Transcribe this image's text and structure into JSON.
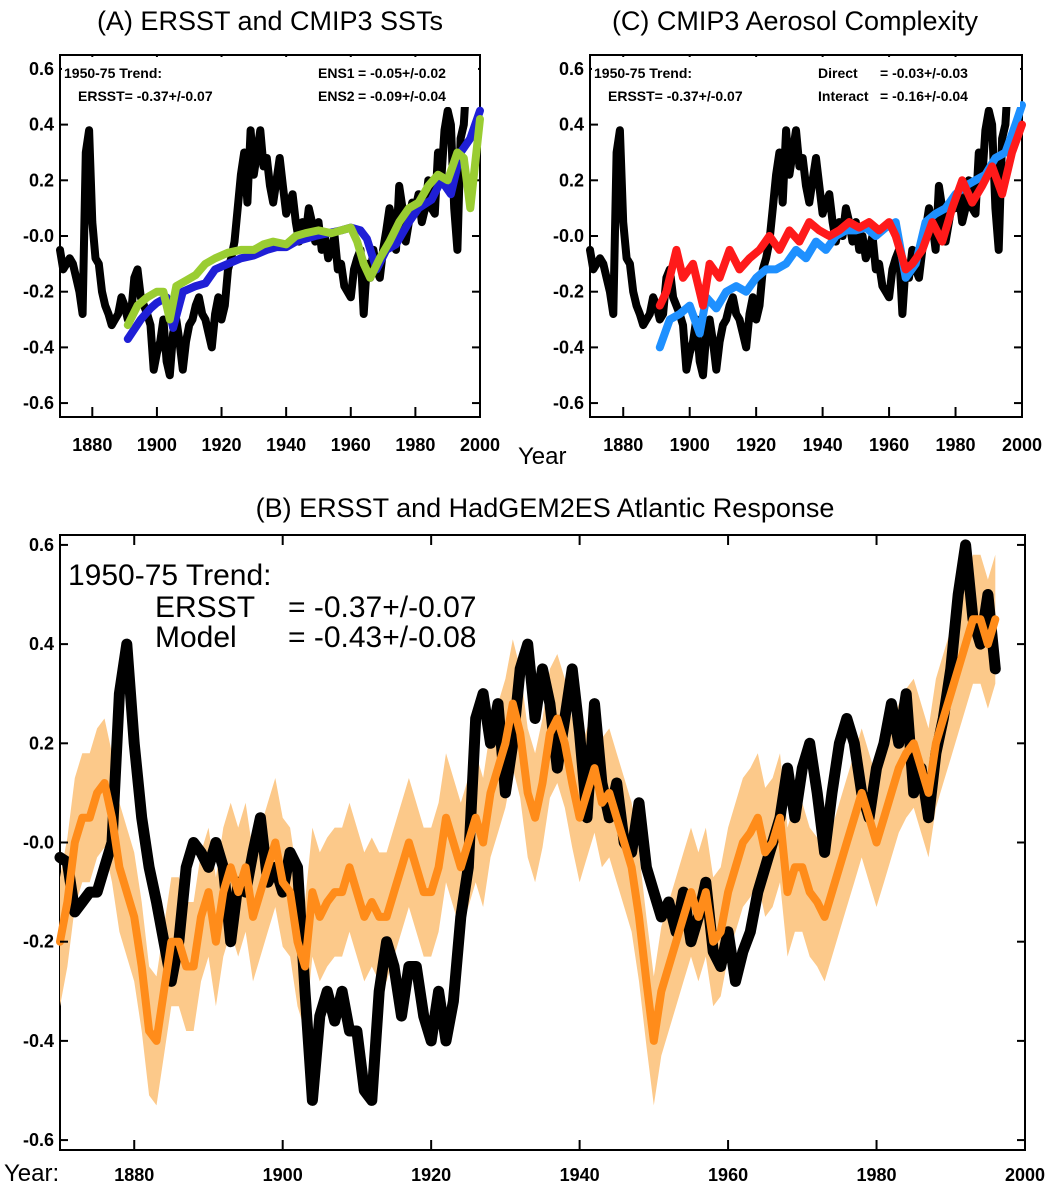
{
  "x_label": "Year",
  "x_label_b": "Year:",
  "chart_data": [
    {
      "id": "A",
      "type": "line",
      "title": "(A) ERSST and CMIP3 SSTs",
      "xlim": [
        1870,
        2000
      ],
      "ylim": [
        -0.65,
        0.65
      ],
      "xticks": [
        1880,
        1900,
        1920,
        1940,
        1960,
        1980,
        2000
      ],
      "yticks": [
        -0.6,
        -0.4,
        -0.2,
        0.0,
        0.2,
        0.4,
        0.6
      ],
      "ytick_labels": [
        "-0.6",
        "-0.4",
        "-0.2",
        "-0.0",
        "0.2",
        "0.4",
        "0.6"
      ],
      "annotations": {
        "trend_title": "1950-75 Trend:",
        "ersst_text": "ERSST= -0.37+/-0.07",
        "legend": [
          {
            "name": "ENS1",
            "value": "= -0.05+/-0.02",
            "color": "#1f1fd6"
          },
          {
            "name": "ENS2",
            "value": "= -0.09+/-0.04",
            "color": "#9acd32"
          }
        ]
      },
      "series": [
        {
          "name": "ERSST",
          "color": "#000000",
          "x0": 1870,
          "values": [
            -0.05,
            -0.12,
            -0.1,
            -0.08,
            -0.1,
            -0.15,
            -0.2,
            -0.28,
            0.3,
            0.38,
            0.05,
            -0.08,
            -0.1,
            -0.2,
            -0.25,
            -0.28,
            -0.32,
            -0.3,
            -0.28,
            -0.22,
            -0.25,
            -0.3,
            -0.28,
            -0.15,
            -0.12,
            -0.22,
            -0.25,
            -0.28,
            -0.32,
            -0.48,
            -0.42,
            -0.38,
            -0.3,
            -0.45,
            -0.5,
            -0.35,
            -0.3,
            -0.38,
            -0.48,
            -0.38,
            -0.32,
            -0.3,
            -0.25,
            -0.22,
            -0.28,
            -0.3,
            -0.35,
            -0.4,
            -0.28,
            -0.22,
            -0.3,
            -0.25,
            -0.12,
            -0.08,
            -0.02,
            0.1,
            0.22,
            0.3,
            0.12,
            0.38,
            0.22,
            0.3,
            0.38,
            0.25,
            0.28,
            0.18,
            0.12,
            0.2,
            0.28,
            0.18,
            0.08,
            0.12,
            0.15,
            0.05,
            -0.02,
            0.05,
            0.0,
            0.1,
            0.05,
            -0.02,
            0.05,
            -0.05,
            0.0,
            -0.08,
            -0.05,
            0.0,
            -0.12,
            -0.1,
            -0.18,
            -0.2,
            -0.22,
            -0.12,
            -0.08,
            -0.05,
            -0.28,
            -0.1,
            -0.15,
            -0.05,
            -0.12,
            -0.15,
            -0.05,
            0.02,
            0.1,
            0.05,
            -0.05,
            0.18,
            0.1,
            -0.02,
            0.05,
            0.12,
            0.1,
            0.15,
            0.05,
            0.1,
            0.2,
            0.1,
            0.08,
            0.3,
            0.2,
            0.38,
            0.45,
            0.4,
            0.1,
            -0.05,
            0.35,
            0.4,
            0.6
          ]
        },
        {
          "name": "ENS1",
          "color": "#1f1fd6",
          "x": [
            1891,
            1895,
            1898,
            1900,
            1903,
            1905,
            1908,
            1912,
            1915,
            1918,
            1922,
            1926,
            1930,
            1934,
            1937,
            1940,
            1943,
            1946,
            1949,
            1953,
            1957,
            1960,
            1963,
            1965,
            1968,
            1971,
            1974,
            1978,
            1981,
            1985,
            1988,
            1991,
            1994,
            1997,
            2000
          ],
          "values": [
            -0.37,
            -0.3,
            -0.26,
            -0.24,
            -0.22,
            -0.33,
            -0.2,
            -0.18,
            -0.17,
            -0.12,
            -0.1,
            -0.08,
            -0.07,
            -0.05,
            -0.04,
            -0.04,
            -0.02,
            -0.01,
            0.0,
            0.01,
            0.02,
            0.03,
            0.02,
            -0.01,
            -0.12,
            -0.05,
            -0.03,
            0.05,
            0.1,
            0.13,
            0.2,
            0.15,
            0.3,
            0.35,
            0.45
          ]
        },
        {
          "name": "ENS2",
          "color": "#9acd32",
          "x": [
            1891,
            1894,
            1897,
            1900,
            1902,
            1904,
            1906,
            1909,
            1912,
            1915,
            1918,
            1922,
            1926,
            1930,
            1933,
            1936,
            1940,
            1943,
            1946,
            1950,
            1954,
            1957,
            1960,
            1962,
            1964,
            1966,
            1969,
            1972,
            1975,
            1978,
            1981,
            1984,
            1987,
            1990,
            1993,
            1995,
            1997,
            2000
          ],
          "values": [
            -0.32,
            -0.25,
            -0.22,
            -0.2,
            -0.2,
            -0.3,
            -0.18,
            -0.16,
            -0.14,
            -0.1,
            -0.08,
            -0.06,
            -0.05,
            -0.05,
            -0.03,
            -0.02,
            -0.03,
            0.0,
            0.01,
            0.02,
            0.01,
            0.02,
            0.03,
            -0.02,
            -0.1,
            -0.15,
            -0.08,
            -0.02,
            0.05,
            0.1,
            0.12,
            0.18,
            0.22,
            0.2,
            0.3,
            0.28,
            0.1,
            0.42
          ]
        }
      ]
    },
    {
      "id": "C",
      "type": "line",
      "title": "(C) CMIP3 Aerosol Complexity",
      "xlim": [
        1870,
        2000
      ],
      "ylim": [
        -0.65,
        0.65
      ],
      "xticks": [
        1880,
        1900,
        1920,
        1940,
        1960,
        1980,
        2000
      ],
      "yticks": [
        -0.6,
        -0.4,
        -0.2,
        0.0,
        0.2,
        0.4,
        0.6
      ],
      "ytick_labels": [
        "-0.6",
        "-0.4",
        "-0.2",
        "-0.0",
        "0.2",
        "0.4",
        "0.6"
      ],
      "annotations": {
        "trend_title": "1950-75 Trend:",
        "ersst_text": "ERSST= -0.37+/-0.07",
        "legend": [
          {
            "name": "Direct",
            "value": "= -0.03+/-0.03",
            "color": "#1e90ff"
          },
          {
            "name": "Interact",
            "value": "= -0.16+/-0.04",
            "color": "#ff1a1a"
          }
        ]
      },
      "series": [
        {
          "name": "ERSST",
          "color": "#000000",
          "ref": "A.0"
        },
        {
          "name": "Direct",
          "color": "#1e90ff",
          "x": [
            1891,
            1894,
            1897,
            1900,
            1903,
            1905,
            1908,
            1911,
            1914,
            1917,
            1920,
            1923,
            1926,
            1929,
            1932,
            1935,
            1938,
            1941,
            1944,
            1947,
            1950,
            1953,
            1956,
            1959,
            1962,
            1965,
            1968,
            1971,
            1974,
            1977,
            1980,
            1983,
            1986,
            1989,
            1992,
            1995,
            1998,
            2000
          ],
          "values": [
            -0.4,
            -0.3,
            -0.28,
            -0.25,
            -0.35,
            -0.22,
            -0.26,
            -0.2,
            -0.18,
            -0.2,
            -0.15,
            -0.12,
            -0.12,
            -0.1,
            -0.05,
            -0.08,
            -0.02,
            -0.05,
            0.0,
            0.02,
            0.02,
            0.03,
            0.0,
            0.03,
            0.05,
            -0.15,
            -0.1,
            0.05,
            0.08,
            0.1,
            0.15,
            0.18,
            0.2,
            0.22,
            0.28,
            0.3,
            0.4,
            0.47
          ]
        },
        {
          "name": "Interact",
          "color": "#ff1a1a",
          "x": [
            1891,
            1893,
            1896,
            1898,
            1901,
            1904,
            1906,
            1909,
            1912,
            1915,
            1918,
            1921,
            1924,
            1927,
            1930,
            1933,
            1936,
            1939,
            1942,
            1945,
            1948,
            1951,
            1954,
            1957,
            1960,
            1962,
            1965,
            1967,
            1970,
            1973,
            1976,
            1979,
            1982,
            1985,
            1988,
            1991,
            1994,
            1997,
            2000
          ],
          "values": [
            -0.25,
            -0.2,
            -0.05,
            -0.15,
            -0.1,
            -0.25,
            -0.1,
            -0.15,
            -0.05,
            -0.12,
            -0.08,
            -0.05,
            0.0,
            -0.05,
            0.02,
            -0.02,
            0.05,
            0.02,
            0.0,
            0.02,
            0.05,
            0.03,
            0.05,
            0.02,
            0.05,
            0.0,
            -0.12,
            -0.1,
            -0.05,
            0.05,
            -0.02,
            0.1,
            0.2,
            0.12,
            0.18,
            0.25,
            0.15,
            0.3,
            0.4
          ]
        }
      ]
    },
    {
      "id": "B",
      "type": "line",
      "title": "(B) ERSST and HadGEM2ES Atlantic Response",
      "xlim": [
        1870,
        2000
      ],
      "ylim": [
        -0.62,
        0.62
      ],
      "xticks": [
        1880,
        1900,
        1920,
        1940,
        1960,
        1980,
        2000
      ],
      "yticks": [
        -0.6,
        -0.4,
        -0.2,
        0.0,
        0.2,
        0.4,
        0.6
      ],
      "ytick_labels": [
        "-0.6",
        "-0.4",
        "-0.2",
        "-0.0",
        "0.2",
        "0.4",
        "0.6"
      ],
      "annotations": {
        "trend_title": "1950-75 Trend:",
        "lines": [
          {
            "name": "ERSST",
            "value": "= -0.37+/-0.07"
          },
          {
            "name": "Model",
            "value": "= -0.43+/-0.08"
          }
        ]
      },
      "series": [
        {
          "name": "ERSST",
          "color": "#000000",
          "x0": 1870,
          "values": [
            -0.03,
            -0.04,
            -0.14,
            -0.12,
            -0.1,
            -0.1,
            -0.05,
            0.0,
            0.3,
            0.4,
            0.2,
            0.05,
            -0.05,
            -0.12,
            -0.2,
            -0.28,
            -0.2,
            -0.05,
            0.0,
            -0.02,
            -0.05,
            0.0,
            -0.05,
            -0.2,
            -0.08,
            -0.1,
            -0.02,
            0.05,
            -0.08,
            -0.05,
            -0.1,
            -0.02,
            -0.05,
            -0.3,
            -0.52,
            -0.35,
            -0.3,
            -0.36,
            -0.3,
            -0.38,
            -0.38,
            -0.5,
            -0.52,
            -0.3,
            -0.2,
            -0.25,
            -0.35,
            -0.25,
            -0.25,
            -0.35,
            -0.4,
            -0.3,
            -0.4,
            -0.32,
            -0.15,
            -0.05,
            0.25,
            0.3,
            0.2,
            0.28,
            0.1,
            0.2,
            0.35,
            0.4,
            0.25,
            0.35,
            0.28,
            0.15,
            0.25,
            0.35,
            0.22,
            0.05,
            0.28,
            0.12,
            0.05,
            0.12,
            0.0,
            -0.02,
            0.08,
            -0.05,
            -0.1,
            -0.15,
            -0.12,
            -0.18,
            -0.1,
            -0.2,
            -0.15,
            -0.08,
            -0.22,
            -0.25,
            -0.18,
            -0.28,
            -0.22,
            -0.18,
            -0.1,
            -0.05,
            0.0,
            0.05,
            0.15,
            0.05,
            0.15,
            0.2,
            0.1,
            -0.02,
            0.1,
            0.2,
            0.25,
            0.2,
            0.1,
            0.05,
            0.15,
            0.2,
            0.28,
            0.2,
            0.3,
            0.1,
            0.15,
            0.05,
            0.18,
            0.25,
            0.35,
            0.5,
            0.6,
            0.45,
            0.4,
            0.5,
            0.35
          ]
        },
        {
          "name": "Model",
          "color": "#ff8c1a",
          "x0": 1870,
          "values": [
            -0.2,
            -0.12,
            0.0,
            0.05,
            0.05,
            0.1,
            0.12,
            0.05,
            -0.05,
            -0.1,
            -0.15,
            -0.25,
            -0.38,
            -0.4,
            -0.3,
            -0.2,
            -0.2,
            -0.25,
            -0.25,
            -0.15,
            -0.1,
            -0.2,
            -0.1,
            -0.05,
            -0.1,
            -0.05,
            -0.15,
            -0.1,
            -0.05,
            0.0,
            -0.08,
            -0.1,
            -0.2,
            -0.25,
            -0.1,
            -0.15,
            -0.12,
            -0.1,
            -0.1,
            -0.05,
            -0.1,
            -0.15,
            -0.12,
            -0.15,
            -0.15,
            -0.1,
            -0.05,
            0.0,
            -0.05,
            -0.1,
            -0.1,
            -0.05,
            0.05,
            0.0,
            -0.05,
            0.0,
            0.05,
            0.0,
            0.1,
            0.15,
            0.2,
            0.28,
            0.22,
            0.1,
            0.05,
            0.12,
            0.22,
            0.25,
            0.2,
            0.12,
            0.05,
            0.1,
            0.15,
            0.08,
            0.1,
            0.05,
            0.0,
            -0.05,
            -0.15,
            -0.28,
            -0.4,
            -0.3,
            -0.25,
            -0.2,
            -0.15,
            -0.1,
            -0.15,
            -0.1,
            -0.2,
            -0.18,
            -0.1,
            -0.05,
            0.0,
            0.02,
            0.05,
            -0.02,
            0.0,
            0.05,
            -0.1,
            -0.05,
            -0.05,
            -0.1,
            -0.12,
            -0.15,
            -0.1,
            -0.05,
            0.0,
            0.05,
            0.1,
            0.05,
            0.0,
            0.05,
            0.1,
            0.15,
            0.18,
            0.2,
            0.15,
            0.1,
            0.2,
            0.25,
            0.3,
            0.35,
            0.4,
            0.45,
            0.45,
            0.4,
            0.45
          ]
        },
        {
          "name": "Model spread",
          "color": "#fcc98a",
          "band_halfwidth": 0.13,
          "x0": 1870
        }
      ]
    }
  ]
}
